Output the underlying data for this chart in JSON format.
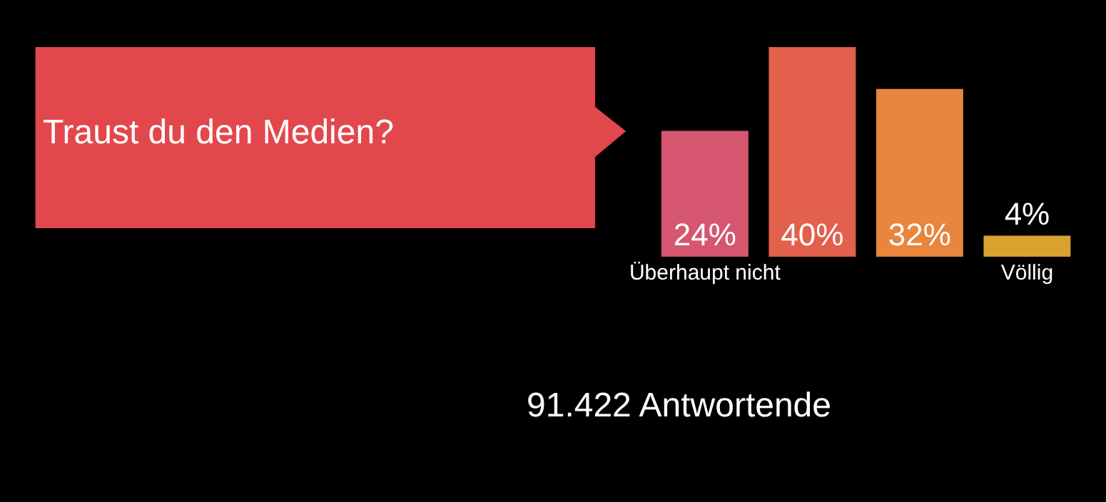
{
  "chart_data": {
    "type": "bar",
    "title": "Traust du den Medien?",
    "categories": [
      "Überhaupt nicht",
      null,
      null,
      "Völlig"
    ],
    "values": [
      24,
      40,
      32,
      4
    ],
    "colors": [
      "#d6566f",
      "#e2604c",
      "#e9853c",
      "#d9a12e"
    ],
    "value_labels": [
      "24%",
      "40%",
      "32%",
      "4%"
    ],
    "ylim": [
      0,
      40
    ],
    "tick_labels": "x",
    "annotations": [
      "91.422 Antwortende"
    ]
  }
}
